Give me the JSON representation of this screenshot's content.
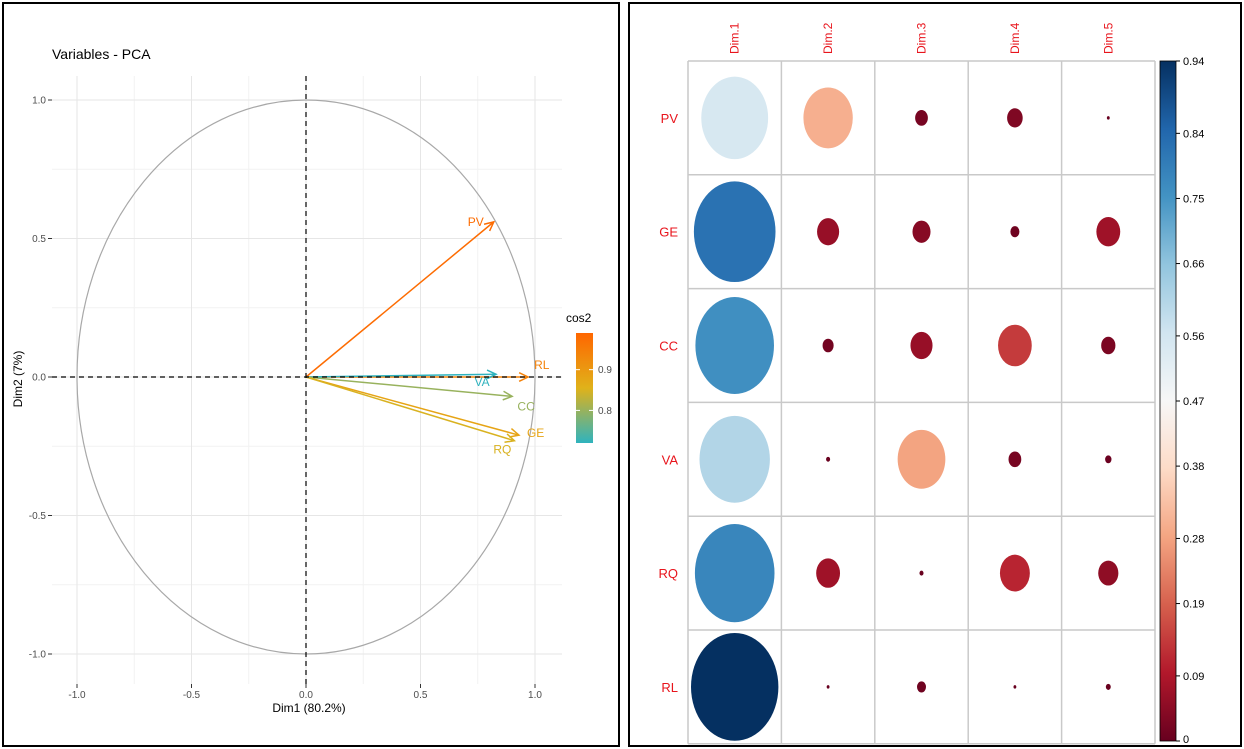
{
  "chart_data": [
    {
      "type": "scatter",
      "subtype": "pca-variable-correlation-circle",
      "title": "Variables - PCA",
      "xlabel": "Dim1 (80.2%)",
      "ylabel": "Dim2 (7%)",
      "xlim": [
        -1.0,
        1.0
      ],
      "ylim": [
        -1.0,
        1.0
      ],
      "x_ticks": [
        "-1.0",
        "-0.5",
        "0.0",
        "0.5",
        "1.0"
      ],
      "y_ticks": [
        "-1.0",
        "-0.5",
        "0.0",
        "0.5",
        "1.0"
      ],
      "grid": true,
      "legend": {
        "title": "cos2",
        "ticks": [
          "0.9",
          "0.8"
        ],
        "placement": "right",
        "range": [
          0.72,
          0.99
        ]
      },
      "colors": {
        "low": "#2fb3be",
        "mid": "#e0b21a",
        "high": "#ff6600"
      },
      "series": [
        {
          "label": "PV",
          "x": 0.82,
          "y": 0.56,
          "cos2": 0.98
        },
        {
          "label": "RL",
          "x": 0.97,
          "y": 0.0,
          "cos2": 0.94
        },
        {
          "label": "VA",
          "x": 0.83,
          "y": 0.01,
          "cos2": 0.72
        },
        {
          "label": "CC",
          "x": 0.9,
          "y": -0.07,
          "cos2": 0.8
        },
        {
          "label": "GE",
          "x": 0.93,
          "y": -0.21,
          "cos2": 0.88
        },
        {
          "label": "RQ",
          "x": 0.91,
          "y": -0.23,
          "cos2": 0.85
        }
      ]
    },
    {
      "type": "heatmap",
      "subtype": "correlation-circle-matrix",
      "rows": [
        "PV",
        "GE",
        "CC",
        "VA",
        "RQ",
        "RL"
      ],
      "columns": [
        "Dim.1",
        "Dim.2",
        "Dim.3",
        "Dim.4",
        "Dim.5"
      ],
      "values": [
        [
          0.55,
          0.3,
          0.02,
          0.03,
          0.001
        ],
        [
          0.82,
          0.06,
          0.04,
          0.01,
          0.07
        ],
        [
          0.76,
          0.015,
          0.06,
          0.14,
          0.025
        ],
        [
          0.61,
          0.002,
          0.28,
          0.02,
          0.005
        ],
        [
          0.78,
          0.07,
          0.002,
          0.11,
          0.05
        ],
        [
          0.94,
          0.001,
          0.01,
          0.001,
          0.003
        ]
      ],
      "colorbar": {
        "ticks": [
          "0.94",
          "0.84",
          "0.75",
          "0.66",
          "0.56",
          "0.47",
          "0.38",
          "0.28",
          "0.19",
          "0.09",
          "0"
        ],
        "min": 0,
        "max": 0.94,
        "colors": [
          "#67001f",
          "#b2182b",
          "#d6604d",
          "#f4a582",
          "#fddbc7",
          "#f7f7f7",
          "#d1e5f0",
          "#92c5de",
          "#4393c3",
          "#2166ac",
          "#053061"
        ]
      }
    }
  ]
}
